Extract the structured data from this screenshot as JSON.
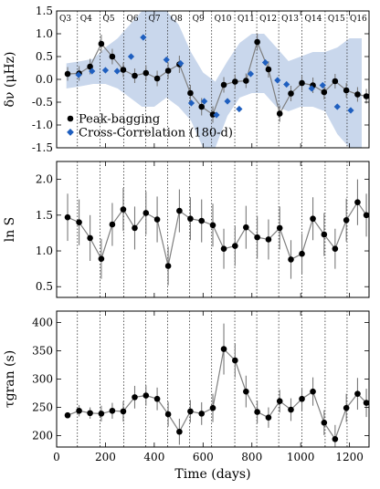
{
  "chart_data": [
    {
      "type": "scatter",
      "ylabel": "δν (μHz)",
      "xlim": [
        0,
        1280
      ],
      "ylim": [
        -1.5,
        1.5
      ],
      "yticks": [
        -1.5,
        -1.0,
        -0.5,
        0.0,
        0.5,
        1.0,
        1.5
      ],
      "quarters": [
        {
          "label": "Q3",
          "x": 0
        },
        {
          "label": "Q4",
          "x": 85
        },
        {
          "label": "Q5",
          "x": 178
        },
        {
          "label": "Q6",
          "x": 275
        },
        {
          "label": "Q7",
          "x": 365
        },
        {
          "label": "Q8",
          "x": 455
        },
        {
          "label": "Q9",
          "x": 545
        },
        {
          "label": "Q10",
          "x": 635
        },
        {
          "label": "Q11",
          "x": 730
        },
        {
          "label": "Q12",
          "x": 820
        },
        {
          "label": "Q13",
          "x": 910
        },
        {
          "label": "Q14",
          "x": 1005
        },
        {
          "label": "Q15",
          "x": 1100
        },
        {
          "label": "Q16",
          "x": 1190
        }
      ],
      "band": {
        "x": [
          40,
          100,
          150,
          200,
          250,
          300,
          350,
          400,
          450,
          500,
          550,
          600,
          650,
          700,
          750,
          800,
          850,
          900,
          950,
          1000,
          1050,
          1100,
          1150,
          1200,
          1250
        ],
        "upper": [
          0.35,
          0.4,
          0.45,
          0.7,
          0.9,
          1.2,
          1.6,
          1.6,
          1.5,
          1.2,
          0.6,
          0.15,
          -0.05,
          0.4,
          0.8,
          1.0,
          1.0,
          0.7,
          0.4,
          0.5,
          0.6,
          0.6,
          0.7,
          0.9,
          0.9
        ],
        "lower": [
          -0.2,
          -0.15,
          -0.1,
          -0.1,
          -0.2,
          -0.4,
          -0.6,
          -0.6,
          -0.4,
          -0.6,
          -0.9,
          -1.5,
          -1.6,
          -0.8,
          -0.4,
          -0.3,
          -0.3,
          -0.6,
          -0.7,
          -0.6,
          -0.6,
          -0.7,
          -1.2,
          -1.6,
          -1.5
        ]
      },
      "series": [
        {
          "name": "Peak-bagging",
          "color": "#000000",
          "x": [
            45,
            92,
            137,
            183,
            228,
            273,
            320,
            366,
            412,
            457,
            503,
            548,
            594,
            640,
            685,
            731,
            776,
            822,
            868,
            914,
            960,
            1005,
            1050,
            1096,
            1141,
            1187,
            1233,
            1269
          ],
          "y": [
            0.12,
            0.13,
            0.28,
            0.78,
            0.5,
            0.21,
            0.08,
            0.14,
            0.02,
            0.19,
            0.33,
            -0.3,
            -0.6,
            -0.77,
            -0.12,
            -0.05,
            -0.03,
            0.82,
            0.22,
            -0.75,
            -0.31,
            -0.08,
            -0.13,
            -0.28,
            -0.04,
            -0.24,
            -0.33,
            -0.37
          ],
          "err": [
            0.15,
            0.16,
            0.17,
            0.2,
            0.17,
            0.16,
            0.16,
            0.17,
            0.17,
            0.18,
            0.19,
            0.18,
            0.19,
            0.18,
            0.17,
            0.16,
            0.16,
            0.19,
            0.18,
            0.18,
            0.17,
            0.16,
            0.17,
            0.16,
            0.16,
            0.16,
            0.16,
            0.16
          ]
        },
        {
          "name": "Cross-Correlation (180-d)",
          "color": "#1f5fbf",
          "x": [
            90,
            145,
            200,
            248,
            305,
            355,
            450,
            508,
            552,
            605,
            655,
            700,
            748,
            795,
            855,
            905,
            942,
            1045,
            1090,
            1150,
            1205
          ],
          "y": [
            0.1,
            0.18,
            0.2,
            0.18,
            0.5,
            0.92,
            0.43,
            0.35,
            -0.52,
            -0.48,
            -0.78,
            -0.48,
            -0.65,
            0.12,
            0.37,
            -0.02,
            -0.11,
            -0.2,
            -0.13,
            -0.6,
            -0.68
          ]
        }
      ],
      "legend": {
        "placement": "bottom-left"
      }
    },
    {
      "type": "scatter",
      "ylabel": "ln S",
      "xlim": [
        0,
        1280
      ],
      "ylim": [
        0.35,
        2.25
      ],
      "yticks": [
        0.5,
        1.0,
        1.5,
        2.0
      ],
      "series": [
        {
          "name": "",
          "color": "#000000",
          "x": [
            45,
            92,
            137,
            183,
            228,
            273,
            320,
            366,
            412,
            457,
            503,
            548,
            594,
            640,
            685,
            731,
            776,
            822,
            868,
            914,
            960,
            1005,
            1050,
            1096,
            1141,
            1187,
            1233,
            1269
          ],
          "y": [
            1.47,
            1.4,
            1.18,
            0.89,
            1.37,
            1.58,
            1.32,
            1.53,
            1.44,
            0.79,
            1.56,
            1.45,
            1.42,
            1.36,
            1.03,
            1.07,
            1.33,
            1.19,
            1.16,
            1.32,
            0.88,
            0.96,
            1.45,
            1.23,
            1.03,
            1.43,
            1.68,
            1.5
          ],
          "err": [
            0.33,
            0.32,
            0.32,
            0.28,
            0.3,
            0.3,
            0.3,
            0.3,
            0.32,
            0.27,
            0.3,
            0.3,
            0.3,
            0.3,
            0.28,
            0.28,
            0.3,
            0.3,
            0.28,
            0.3,
            0.27,
            0.28,
            0.3,
            0.3,
            0.28,
            0.3,
            0.32,
            0.3
          ]
        }
      ]
    },
    {
      "type": "scatter",
      "ylabel": "τgran (s)",
      "xlabel": "Time (days)",
      "xlim": [
        0,
        1280
      ],
      "ylim": [
        180,
        420
      ],
      "yticks": [
        200,
        250,
        300,
        350,
        400
      ],
      "xticks": [
        0,
        200,
        400,
        600,
        800,
        1000,
        1200
      ],
      "series": [
        {
          "name": "",
          "color": "#000000",
          "x": [
            45,
            92,
            137,
            183,
            228,
            273,
            320,
            366,
            412,
            457,
            503,
            548,
            594,
            640,
            685,
            731,
            776,
            822,
            868,
            914,
            960,
            1005,
            1050,
            1096,
            1141,
            1187,
            1233,
            1269
          ],
          "y": [
            236,
            244,
            240,
            239,
            244,
            243,
            268,
            271,
            265,
            238,
            207,
            243,
            239,
            249,
            353,
            333,
            278,
            242,
            232,
            261,
            246,
            265,
            278,
            223,
            194,
            249,
            274,
            258
          ],
          "err": [
            5,
            10,
            10,
            14,
            14,
            18,
            20,
            18,
            20,
            22,
            23,
            20,
            20,
            25,
            45,
            30,
            28,
            20,
            18,
            20,
            20,
            20,
            25,
            22,
            25,
            25,
            28,
            25
          ]
        }
      ]
    }
  ]
}
